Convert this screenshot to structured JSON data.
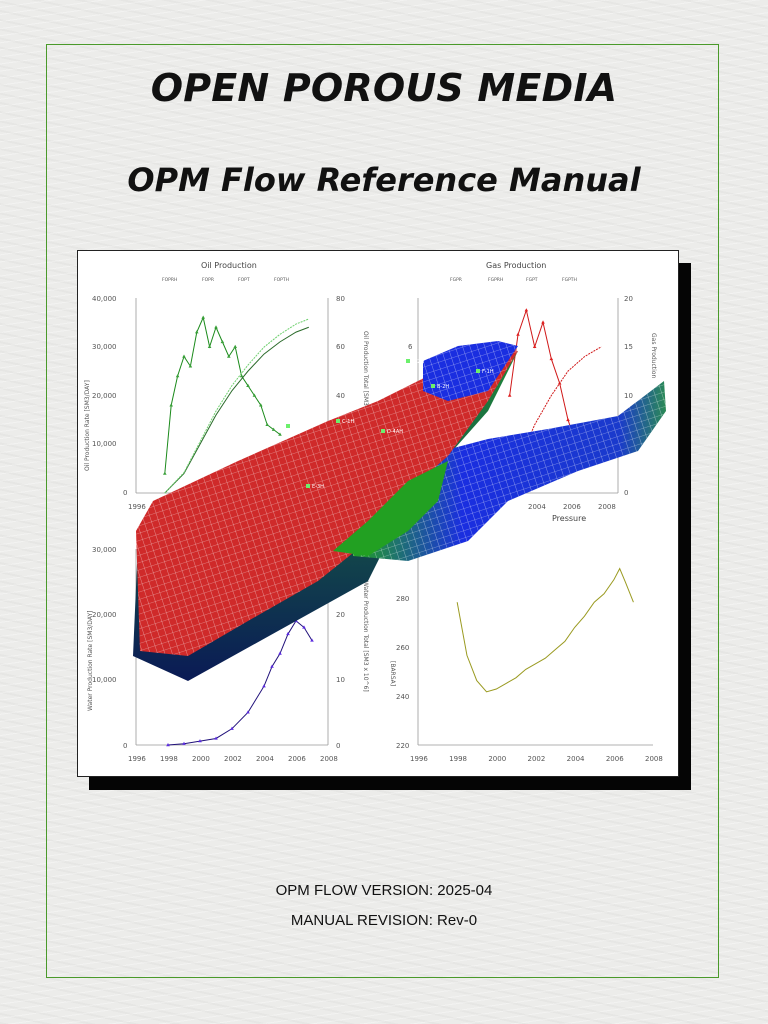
{
  "cover": {
    "title": "OPEN POROUS MEDIA",
    "subtitle": "OPM Flow Reference Manual",
    "version_label": "OPM FLOW VERSION: 2025-04",
    "revision_label": "MANUAL REVISION: Rev-0",
    "accent_color": "#4a9a2a"
  },
  "figure": {
    "reservoir_overlay_label": "Pressure",
    "well_labels": [
      "C-4H",
      "C-1H",
      "C-2H",
      "B-2H",
      "D-4AH",
      "E-3H",
      "F-1H"
    ],
    "colors": {
      "oil": "#1a8a1a",
      "gas": "#d01818",
      "water": "#20107a",
      "pressure": "#9a9a20",
      "grid_red": "#cf2a2a",
      "grid_green": "#22a022",
      "grid_blue": "#1a2ee0"
    }
  },
  "chart_data": [
    {
      "type": "line",
      "title": "Oil Production",
      "legend": [
        "FOPRH",
        "FOPR",
        "FOPT",
        "FOPTH"
      ],
      "ylabel": "Oil Production Rate [SM3/DAY]",
      "y2label": "Oil Production Total [SM3 x 10^6]",
      "x_ticks": [
        "1996",
        "1998"
      ],
      "y_ticks": [
        "0",
        "10,000",
        "20,000",
        "30,000",
        "40,000"
      ],
      "y2_ticks": [
        "0",
        "20",
        "40",
        "60",
        "80"
      ],
      "xlim": [
        1996,
        2008
      ],
      "ylim": [
        0,
        40000
      ],
      "y2lim": [
        0,
        80
      ],
      "series": [
        {
          "name": "FOPR",
          "x": [
            1997.8,
            1998.2,
            1998.6,
            1999.0,
            1999.4,
            1999.8,
            2000.2,
            2000.6,
            2001.0,
            2001.4,
            2001.8,
            2002.2,
            2002.6,
            2003.0,
            2003.4,
            2003.8,
            2004.2,
            2004.6,
            2005.0
          ],
          "y": [
            4000,
            18000,
            24000,
            28000,
            26000,
            33000,
            36000,
            30000,
            34000,
            31000,
            28000,
            30000,
            24000,
            22000,
            20000,
            18000,
            14000,
            13000,
            12000
          ]
        },
        {
          "name": "FOPT",
          "x": [
            1997.8,
            1999,
            2000,
            2001,
            2002,
            2003,
            2004,
            2005,
            2006,
            2006.8
          ],
          "y": [
            0,
            8,
            20,
            32,
            42,
            50,
            57,
            62,
            66,
            68
          ]
        }
      ]
    },
    {
      "type": "line",
      "title": "Gas Production",
      "legend": [
        "FGPR",
        "FGPRH",
        "FGPT",
        "FGPTH"
      ],
      "y2label": "Gas Production",
      "x_ticks": [
        "2004",
        "2006",
        "2008"
      ],
      "y_ticks": [
        "6",
        "4"
      ],
      "y2_ticks": [
        "0",
        "5",
        "10",
        "15",
        "20"
      ],
      "xlim": [
        1996,
        2008
      ],
      "y2lim": [
        0,
        20
      ],
      "series": [
        {
          "name": "FGPR",
          "x": [
            2001.5,
            2002,
            2002.5,
            2003,
            2003.5,
            2004,
            2004.5,
            2005,
            2005.5
          ],
          "y": [
            4,
            6.5,
            7.5,
            6,
            7,
            5.5,
            4.5,
            3,
            2
          ]
        }
      ]
    },
    {
      "type": "line",
      "title": "Water Production",
      "ylabel": "Water Production Rate [SM3/DAY]",
      "y2label": "Water Production Total [SM3 x 10^6]",
      "x_ticks": [
        "1996",
        "1998",
        "2000",
        "2002",
        "2004",
        "2006",
        "2008"
      ],
      "y_ticks": [
        "0",
        "10,000",
        "20,000",
        "30,000"
      ],
      "y2_ticks": [
        "0",
        "10",
        "20"
      ],
      "xlim": [
        1996,
        2008
      ],
      "ylim": [
        0,
        30000
      ],
      "series": [
        {
          "name": "WPR",
          "x": [
            1998,
            1999,
            2000,
            2001,
            2002,
            2003,
            2004,
            2004.5,
            2005,
            2005.5,
            2006,
            2006.5,
            2007
          ],
          "y": [
            0,
            200,
            600,
            1000,
            2500,
            5000,
            9000,
            12000,
            14000,
            17000,
            19000,
            18000,
            16000
          ]
        }
      ]
    },
    {
      "type": "line",
      "title": "Pressure",
      "ylabel": "[BARSA]",
      "x_ticks": [
        "1996",
        "1998",
        "2000",
        "2002",
        "2004",
        "2006",
        "2008"
      ],
      "y_ticks": [
        "220",
        "240",
        "260",
        "280"
      ],
      "xlim": [
        1996,
        2008
      ],
      "ylim": [
        220,
        290
      ],
      "series": [
        {
          "name": "FPR",
          "x": [
            1998,
            1998.5,
            1999,
            1999.5,
            2000,
            2000.5,
            2001,
            2001.5,
            2002,
            2002.5,
            2003,
            2003.5,
            2004,
            2004.5,
            2005,
            2005.5,
            2006,
            2006.3,
            2006.6,
            2007
          ],
          "y": [
            271,
            252,
            243,
            239,
            240,
            242,
            244,
            247,
            249,
            251,
            254,
            257,
            262,
            266,
            271,
            274,
            279,
            283,
            278,
            271
          ]
        }
      ]
    }
  ]
}
